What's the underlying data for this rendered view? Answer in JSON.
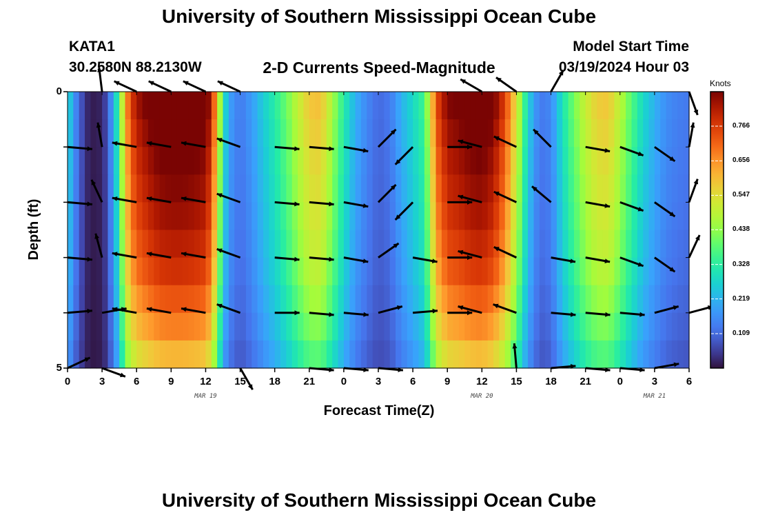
{
  "header": {
    "title_top": "University of Southern Mississippi Ocean Cube",
    "station_id": "KATA1",
    "station_coords": "30.2580N  88.2130W",
    "chart_title": "2-D Currents Speed-Magnitude",
    "model_label": "Model Start Time",
    "model_time": "03/19/2024 Hour 03",
    "title_bottom": "University of Southern Mississippi Ocean Cube"
  },
  "chart_data": {
    "type": "heatmap",
    "title": "2-D Currents Speed-Magnitude",
    "xlabel": "Forecast Time(Z)",
    "ylabel": "Depth (ft)",
    "x_ticks": [
      "0",
      "3",
      "6",
      "9",
      "12",
      "15",
      "18",
      "21",
      "0",
      "3",
      "6",
      "9",
      "12",
      "15",
      "18",
      "21",
      "0",
      "3",
      "6"
    ],
    "x_range_hours": [
      0,
      54
    ],
    "date_labels": [
      {
        "text": "MAR 19",
        "hour": 12
      },
      {
        "text": "MAR 20",
        "hour": 36
      },
      {
        "text": "MAR 21",
        "hour": 51
      }
    ],
    "y_ticks": [
      "0",
      "5"
    ],
    "y_range_ft": [
      0,
      5
    ],
    "colorbar": {
      "unit": "Knots",
      "ticks": [
        "0.766",
        "0.656",
        "0.547",
        "0.438",
        "0.328",
        "0.219",
        "0.109"
      ],
      "tick_values": [
        0.766,
        0.656,
        0.547,
        0.438,
        0.328,
        0.219,
        0.109
      ],
      "range": [
        0.0,
        0.875
      ]
    },
    "speed_by_hour": [
      {
        "h": 0.0,
        "v": 0.28
      },
      {
        "h": 0.5,
        "v": 0.17
      },
      {
        "h": 1.0,
        "v": 0.1
      },
      {
        "h": 1.5,
        "v": 0.04
      },
      {
        "h": 2.0,
        "v": 0.01
      },
      {
        "h": 3.0,
        "v": 0.02
      },
      {
        "h": 3.5,
        "v": 0.08
      },
      {
        "h": 4.0,
        "v": 0.2
      },
      {
        "h": 4.5,
        "v": 0.34
      },
      {
        "h": 5.0,
        "v": 0.58
      },
      {
        "h": 5.5,
        "v": 0.7
      },
      {
        "h": 6.0,
        "v": 0.77
      },
      {
        "h": 7.0,
        "v": 0.82
      },
      {
        "h": 8.0,
        "v": 0.86
      },
      {
        "h": 9.0,
        "v": 0.87
      },
      {
        "h": 10.0,
        "v": 0.87
      },
      {
        "h": 11.0,
        "v": 0.86
      },
      {
        "h": 12.0,
        "v": 0.84
      },
      {
        "h": 12.5,
        "v": 0.75
      },
      {
        "h": 13.0,
        "v": 0.55
      },
      {
        "h": 13.5,
        "v": 0.3
      },
      {
        "h": 14.0,
        "v": 0.18
      },
      {
        "h": 15.0,
        "v": 0.12
      },
      {
        "h": 16.0,
        "v": 0.17
      },
      {
        "h": 17.0,
        "v": 0.24
      },
      {
        "h": 18.0,
        "v": 0.3
      },
      {
        "h": 19.0,
        "v": 0.37
      },
      {
        "h": 20.0,
        "v": 0.46
      },
      {
        "h": 21.0,
        "v": 0.54
      },
      {
        "h": 22.0,
        "v": 0.55
      },
      {
        "h": 23.0,
        "v": 0.43
      },
      {
        "h": 24.0,
        "v": 0.3
      },
      {
        "h": 25.0,
        "v": 0.2
      },
      {
        "h": 26.0,
        "v": 0.14
      },
      {
        "h": 27.0,
        "v": 0.1
      },
      {
        "h": 28.0,
        "v": 0.12
      },
      {
        "h": 29.0,
        "v": 0.2
      },
      {
        "h": 30.0,
        "v": 0.26
      },
      {
        "h": 31.0,
        "v": 0.33
      },
      {
        "h": 31.5,
        "v": 0.48
      },
      {
        "h": 32.0,
        "v": 0.68
      },
      {
        "h": 33.0,
        "v": 0.8
      },
      {
        "h": 34.0,
        "v": 0.82
      },
      {
        "h": 35.0,
        "v": 0.85
      },
      {
        "h": 36.0,
        "v": 0.86
      },
      {
        "h": 37.0,
        "v": 0.82
      },
      {
        "h": 38.0,
        "v": 0.7
      },
      {
        "h": 39.0,
        "v": 0.5
      },
      {
        "h": 40.0,
        "v": 0.25
      },
      {
        "h": 41.0,
        "v": 0.12
      },
      {
        "h": 42.0,
        "v": 0.14
      },
      {
        "h": 43.0,
        "v": 0.28
      },
      {
        "h": 44.0,
        "v": 0.38
      },
      {
        "h": 45.0,
        "v": 0.47
      },
      {
        "h": 46.0,
        "v": 0.53
      },
      {
        "h": 47.0,
        "v": 0.54
      },
      {
        "h": 48.0,
        "v": 0.45
      },
      {
        "h": 49.0,
        "v": 0.35
      },
      {
        "h": 50.0,
        "v": 0.26
      },
      {
        "h": 51.0,
        "v": 0.2
      },
      {
        "h": 52.0,
        "v": 0.15
      },
      {
        "h": 53.0,
        "v": 0.13
      },
      {
        "h": 54.0,
        "v": 0.12
      }
    ],
    "depth_factors_ft": [
      {
        "depth": 0.0,
        "f": 1.08
      },
      {
        "depth": 0.5,
        "f": 1.08
      },
      {
        "depth": 1.0,
        "f": 1.02
      },
      {
        "depth": 1.5,
        "f": 1.02
      },
      {
        "depth": 2.0,
        "f": 0.97
      },
      {
        "depth": 2.5,
        "f": 0.97
      },
      {
        "depth": 3.0,
        "f": 0.9
      },
      {
        "depth": 3.5,
        "f": 0.9
      },
      {
        "depth": 4.0,
        "f": 0.78
      },
      {
        "depth": 4.5,
        "f": 0.78
      },
      {
        "depth": 5.0,
        "f": 0.62
      }
    ],
    "vectors": {
      "hours": [
        0,
        3,
        6,
        9,
        12,
        15,
        18,
        21,
        24,
        27,
        30,
        33,
        36,
        39,
        42,
        45,
        48,
        51,
        54
      ],
      "depths_ft": [
        0,
        1,
        2,
        3,
        4,
        5
      ],
      "direction_deg": [
        [
          null,
          -97,
          -155,
          -155,
          -155,
          -155,
          null,
          null,
          null,
          null,
          null,
          null,
          -150,
          -145,
          -60,
          null,
          null,
          null,
          70
        ],
        [
          5,
          -100,
          -170,
          -170,
          -170,
          -160,
          5,
          5,
          10,
          -45,
          135,
          0,
          -165,
          -155,
          -135,
          10,
          20,
          35,
          -80
        ],
        [
          5,
          -115,
          -170,
          -170,
          -170,
          -160,
          5,
          5,
          10,
          -45,
          135,
          0,
          -165,
          -155,
          -140,
          10,
          20,
          35,
          -70
        ],
        [
          5,
          -105,
          -170,
          -170,
          -170,
          -160,
          5,
          5,
          10,
          -35,
          10,
          0,
          -165,
          -155,
          10,
          10,
          20,
          35,
          -65
        ],
        [
          -5,
          -10,
          -170,
          -170,
          -170,
          -160,
          0,
          5,
          5,
          -15,
          -5,
          0,
          -165,
          -160,
          5,
          5,
          5,
          -15,
          -15
        ],
        [
          -25,
          20,
          null,
          null,
          null,
          60,
          null,
          5,
          5,
          5,
          null,
          null,
          null,
          -95,
          -5,
          5,
          5,
          -10,
          null
        ]
      ]
    }
  }
}
